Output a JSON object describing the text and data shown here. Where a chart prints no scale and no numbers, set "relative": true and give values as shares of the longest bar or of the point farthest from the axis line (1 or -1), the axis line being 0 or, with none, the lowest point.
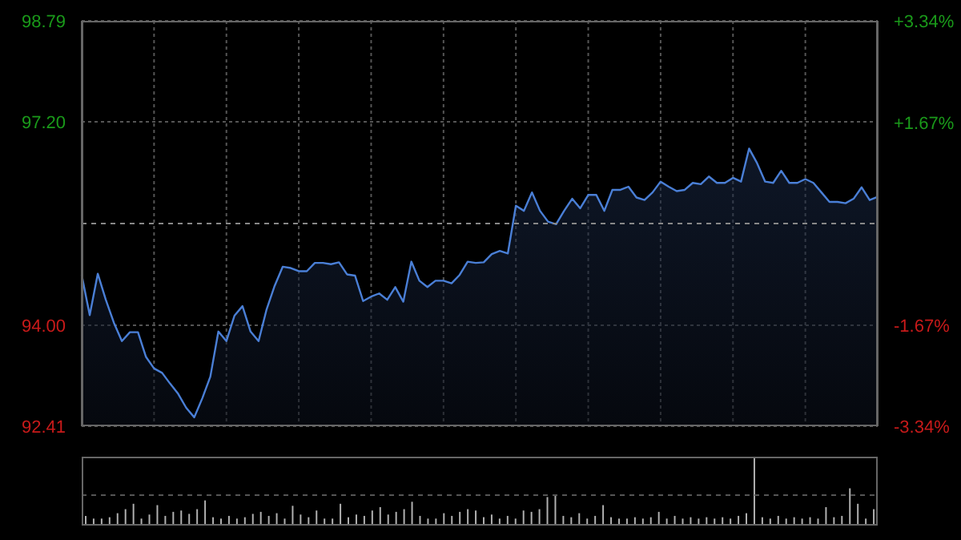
{
  "chart_data": [
    {
      "type": "area",
      "categories": [
        null,
        null,
        null,
        null,
        null,
        null,
        null,
        null,
        null,
        null,
        null,
        null,
        null,
        null,
        null,
        null,
        null,
        null,
        null,
        null,
        null,
        null,
        null,
        null,
        null,
        null,
        null,
        null,
        null,
        null,
        null,
        null,
        null,
        null,
        null,
        null,
        null,
        null,
        null,
        null,
        null,
        null,
        null,
        null,
        null,
        null,
        null,
        null,
        null,
        null,
        null,
        null,
        null,
        null,
        null,
        null,
        null,
        null,
        null,
        null,
        null,
        null,
        null,
        null,
        null,
        null,
        null,
        null,
        null,
        null,
        null,
        null,
        null,
        null,
        null,
        null,
        null,
        null,
        null,
        null,
        null,
        null,
        null,
        null,
        null,
        null,
        null,
        null,
        null,
        null,
        null,
        null,
        null,
        null,
        null,
        null,
        null,
        null,
        null,
        null
      ],
      "series": [
        {
          "color": "#4a7fd6",
          "values": [
            94.79,
            94.16,
            94.81,
            94.4,
            94.04,
            93.75,
            93.89,
            93.89,
            93.5,
            93.32,
            93.25,
            93.08,
            92.92,
            92.7,
            92.55,
            92.85,
            93.19,
            93.9,
            93.75,
            94.15,
            94.3,
            93.9,
            93.75,
            94.25,
            94.62,
            94.92,
            94.9,
            94.85,
            94.85,
            94.98,
            94.98,
            94.96,
            94.99,
            94.8,
            94.78,
            94.38,
            94.45,
            94.5,
            94.4,
            94.6,
            94.37,
            95.0,
            94.7,
            94.6,
            94.7,
            94.7,
            94.66,
            94.79,
            95.0,
            94.98,
            94.99,
            95.12,
            95.17,
            95.13,
            95.88,
            95.8,
            96.09,
            95.8,
            95.63,
            95.59,
            95.8,
            95.99,
            95.84,
            96.05,
            96.05,
            95.8,
            96.13,
            96.13,
            96.18,
            96.01,
            95.97,
            96.09,
            96.26,
            96.18,
            96.11,
            96.13,
            96.24,
            96.22,
            96.34,
            96.24,
            96.24,
            96.32,
            96.26,
            96.78,
            96.55,
            96.26,
            96.24,
            96.43,
            96.24,
            96.24,
            96.3,
            96.24,
            96.09,
            95.94,
            95.94,
            95.92,
            95.99,
            96.17,
            95.97,
            96.02
          ]
        }
      ],
      "ylim": [
        92.41,
        98.79
      ],
      "yticks": [
        92.41,
        {
          "value": 94,
          "label": "94.00"
        },
        {
          "value": 97.2,
          "label": "97.20"
        },
        98.79
      ],
      "y2lim": [
        -3.34,
        3.34
      ],
      "y2ticks": [
        {
          "value": -3.34,
          "label": "-3.34%"
        },
        {
          "value": -1.67,
          "label": "-1.67%"
        },
        {
          "value": 1.67,
          "label": "+1.67%"
        },
        {
          "value": 3.34,
          "label": "+3.34%"
        }
      ],
      "ref_lines": [
        {
          "axis": "y",
          "value": 95.6,
          "line_style": "dashed"
        }
      ],
      "grid": true,
      "legend": false,
      "tick_labels": "y"
    },
    {
      "type": "bar",
      "relative": true,
      "color": "#b0b0b0",
      "categories": [
        null,
        null,
        null,
        null,
        null,
        null,
        null,
        null,
        null,
        null,
        null,
        null,
        null,
        null,
        null,
        null,
        null,
        null,
        null,
        null,
        null,
        null,
        null,
        null,
        null,
        null,
        null,
        null,
        null,
        null,
        null,
        null,
        null,
        null,
        null,
        null,
        null,
        null,
        null,
        null,
        null,
        null,
        null,
        null,
        null,
        null,
        null,
        null,
        null,
        null,
        null,
        null,
        null,
        null,
        null,
        null,
        null,
        null,
        null,
        null,
        null,
        null,
        null,
        null,
        null,
        null,
        null,
        null,
        null,
        null,
        null,
        null,
        null,
        null,
        null,
        null,
        null,
        null,
        null,
        null,
        null,
        null,
        null,
        null,
        null,
        null,
        null,
        null,
        null,
        null,
        null,
        null,
        null,
        null,
        null,
        null,
        null,
        null,
        null,
        null
      ],
      "values": [
        0.12,
        0.08,
        0.08,
        0.1,
        0.16,
        0.22,
        0.3,
        0.08,
        0.14,
        0.28,
        0.12,
        0.18,
        0.2,
        0.15,
        0.22,
        0.35,
        0.1,
        0.08,
        0.12,
        0.08,
        0.1,
        0.15,
        0.18,
        0.12,
        0.16,
        0.08,
        0.27,
        0.14,
        0.1,
        0.2,
        0.08,
        0.08,
        0.3,
        0.1,
        0.14,
        0.12,
        0.2,
        0.25,
        0.14,
        0.18,
        0.22,
        0.33,
        0.12,
        0.08,
        0.08,
        0.16,
        0.12,
        0.18,
        0.22,
        0.2,
        0.1,
        0.14,
        0.08,
        0.12,
        0.08,
        0.2,
        0.18,
        0.22,
        0.4,
        0.42,
        0.12,
        0.1,
        0.16,
        0.08,
        0.12,
        0.28,
        0.1,
        0.08,
        0.08,
        0.1,
        0.08,
        0.1,
        0.18,
        0.08,
        0.12,
        0.08,
        0.1,
        0.08,
        0.1,
        0.08,
        0.1,
        0.08,
        0.12,
        0.16,
        1,
        0.1,
        0.08,
        0.12,
        0.08,
        0.1,
        0.08,
        0.1,
        0.08,
        0.25,
        0.1,
        0.12,
        0.53,
        0.3,
        0.08,
        0.22
      ],
      "ref_lines": [
        {
          "axis": "y",
          "value": 0.43,
          "line_style": "dashed"
        }
      ],
      "tick_labels": false
    }
  ]
}
